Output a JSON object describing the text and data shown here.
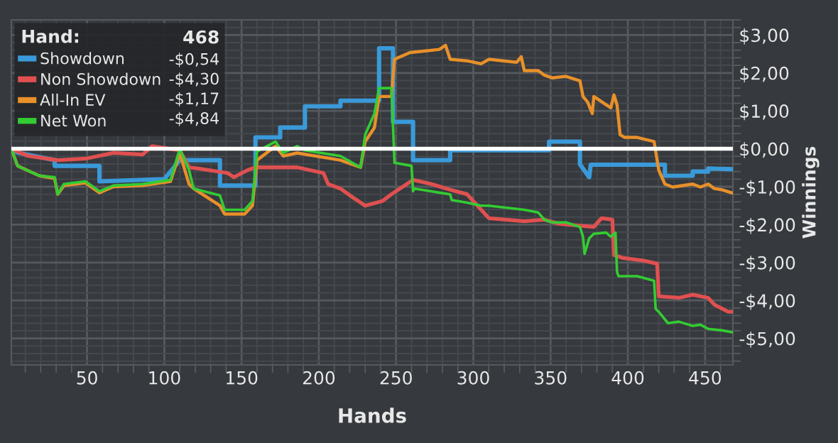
{
  "chart_data": {
    "type": "line",
    "xlabel": "Hands",
    "ylabel": "Winnings",
    "legend_title": "Hand:",
    "legend": "top left",
    "grid": true,
    "marker": "none",
    "line_style": "solid",
    "xlim": [
      1,
      468
    ],
    "xticks": [
      50,
      100,
      150,
      200,
      250,
      300,
      350,
      400,
      450
    ],
    "ylim": [
      -5.7,
      3.4
    ],
    "yticks": [
      {
        "value": 3,
        "label": "$3,00"
      },
      {
        "value": 2,
        "label": "$2,00"
      },
      {
        "value": 1,
        "label": "$1,00"
      },
      {
        "value": 0,
        "label": "$0,00"
      },
      {
        "value": -1,
        "label": "-$1,00"
      },
      {
        "value": -2,
        "label": "-$2,00"
      },
      {
        "value": -3,
        "label": "-$3,00"
      },
      {
        "value": -4,
        "label": "-$4,00"
      },
      {
        "value": -5,
        "label": "-$5,00"
      }
    ],
    "ref_lines": [
      {
        "axis": "y",
        "value": 0,
        "label": null,
        "color": "#ffffff"
      }
    ],
    "annotations": [
      "468",
      "-$0,54",
      "-$4,30",
      "-$1,17",
      "-$4,84"
    ],
    "series": [
      {
        "name": "Showdown",
        "color": "#3a9ad9",
        "x": [
          1,
          5,
          29,
          29,
          58,
          58,
          100,
          110,
          136,
          136,
          159,
          159,
          175,
          175,
          191,
          191,
          214,
          214,
          239,
          239,
          248,
          248,
          261,
          261,
          285,
          285,
          349,
          349,
          369,
          369,
          375,
          376,
          424,
          424,
          442,
          442,
          452,
          452,
          468
        ],
        "values": [
          0,
          -0.1,
          -0.3,
          -0.45,
          -0.45,
          -0.86,
          -0.8,
          -0.3,
          -0.3,
          -0.97,
          -0.97,
          0.3,
          0.3,
          0.56,
          0.56,
          1.12,
          1.12,
          1.27,
          1.27,
          2.65,
          2.65,
          0.71,
          0.71,
          -0.3,
          -0.3,
          -0.04,
          -0.04,
          0.19,
          0.19,
          -0.41,
          -0.75,
          -0.42,
          -0.42,
          -0.71,
          -0.71,
          -0.6,
          -0.6,
          -0.52,
          -0.54
        ]
      },
      {
        "name": "Non Showdown",
        "color": "#e05050",
        "x": [
          1,
          12,
          31,
          49,
          67,
          86,
          92,
          110,
          116,
          122,
          141,
          145,
          154,
          159,
          186,
          203,
          206,
          214,
          223,
          230,
          241,
          247,
          261,
          273,
          285,
          296,
          310,
          333,
          346,
          356,
          378,
          383,
          390,
          391,
          397,
          410,
          419,
          420,
          433,
          442,
          452,
          456,
          465,
          468
        ],
        "values": [
          0,
          -0.19,
          -0.3,
          -0.26,
          -0.11,
          -0.15,
          0.07,
          -0.04,
          -0.49,
          -0.52,
          -0.64,
          -0.75,
          -0.56,
          -0.49,
          -0.49,
          -0.64,
          -0.93,
          -1.05,
          -1.31,
          -1.5,
          -1.38,
          -1.2,
          -0.82,
          -0.93,
          -1.08,
          -1.2,
          -1.83,
          -1.91,
          -1.87,
          -1.98,
          -2.06,
          -1.83,
          -1.87,
          -2.8,
          -2.88,
          -2.95,
          -3.03,
          -3.89,
          -3.93,
          -3.85,
          -3.93,
          -4.11,
          -4.3,
          -4.3
        ]
      },
      {
        "name": "All-In EV",
        "color": "#e8902a",
        "x": [
          1,
          5,
          19,
          29,
          31,
          35,
          49,
          58,
          67,
          86,
          104,
          110,
          116,
          119,
          136,
          139,
          152,
          157,
          160,
          172,
          177,
          186,
          214,
          227,
          230,
          236,
          239,
          247,
          249,
          259,
          269,
          278,
          282,
          285,
          296,
          305,
          310,
          328,
          331,
          333,
          342,
          346,
          351,
          360,
          369,
          371,
          374,
          377,
          378,
          386,
          389,
          391,
          393,
          395,
          398,
          406,
          417,
          420,
          424,
          429,
          442,
          447,
          452,
          456,
          461,
          468
        ],
        "values": [
          0,
          -0.45,
          -0.71,
          -0.78,
          -1.2,
          -0.97,
          -0.9,
          -1.16,
          -1.0,
          -0.97,
          -0.86,
          -0.11,
          -0.93,
          -1.05,
          -1.5,
          -1.72,
          -1.72,
          -1.5,
          -0.3,
          0.07,
          -0.19,
          -0.11,
          -0.3,
          -0.49,
          0.19,
          0.56,
          1.38,
          1.38,
          2.36,
          2.54,
          2.58,
          2.62,
          2.73,
          2.36,
          2.32,
          2.24,
          2.36,
          2.28,
          2.43,
          2.06,
          2.06,
          1.94,
          1.87,
          1.91,
          1.79,
          1.38,
          1.23,
          0.93,
          1.38,
          1.16,
          1.08,
          1.42,
          1.16,
          0.37,
          0.3,
          0.3,
          0.19,
          -0.56,
          -0.93,
          -1.01,
          -0.93,
          -1.01,
          -0.93,
          -1.05,
          -1.08,
          -1.17
        ]
      },
      {
        "name": "Net Won",
        "color": "#33cc33",
        "x": [
          1,
          5,
          19,
          29,
          31,
          35,
          49,
          58,
          67,
          86,
          104,
          110,
          116,
          119,
          136,
          139,
          152,
          157,
          160,
          172,
          177,
          186,
          191,
          214,
          227,
          230,
          236,
          239,
          247,
          249,
          260,
          261,
          262,
          285,
          286,
          296,
          305,
          310,
          333,
          342,
          346,
          351,
          360,
          369,
          371,
          372,
          375,
          378,
          386,
          389,
          392,
          393,
          394,
          397,
          406,
          417,
          418,
          420,
          426,
          433,
          442,
          447,
          452,
          461,
          468
        ],
        "values": [
          0,
          -0.45,
          -0.71,
          -0.75,
          -1.2,
          -0.93,
          -0.86,
          -1.12,
          -0.97,
          -0.93,
          -0.82,
          0.0,
          -0.56,
          -1.05,
          -1.23,
          -1.61,
          -1.61,
          -1.38,
          -0.07,
          0.19,
          -0.11,
          0.07,
          -0.04,
          -0.19,
          -0.49,
          0.37,
          0.93,
          1.6,
          1.6,
          -0.37,
          -0.45,
          -1.12,
          -1.05,
          -1.2,
          -1.35,
          -1.42,
          -1.5,
          -1.5,
          -1.61,
          -1.68,
          -1.87,
          -1.94,
          -1.94,
          -2.06,
          -2.32,
          -2.77,
          -2.36,
          -2.24,
          -2.21,
          -2.32,
          -2.21,
          -3.25,
          -3.36,
          -3.36,
          -3.36,
          -3.48,
          -4.22,
          -4.3,
          -4.6,
          -4.56,
          -4.67,
          -4.64,
          -4.75,
          -4.79,
          -4.84
        ]
      }
    ]
  }
}
